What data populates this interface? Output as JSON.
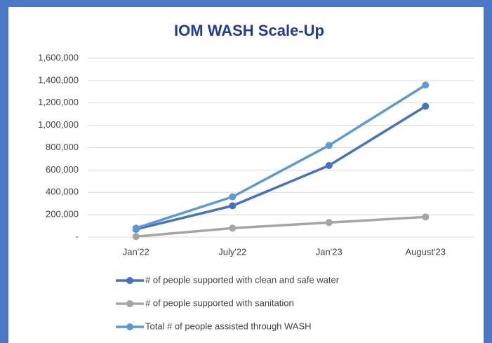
{
  "chart_data": {
    "type": "line",
    "title": "IOM WASH Scale-Up",
    "categories": [
      "Jan'22",
      "July'22",
      "Jan'23",
      "August'23"
    ],
    "series": [
      {
        "name": "# of people supported with clean and safe water",
        "color": "#4472c4",
        "values": [
          70000,
          280000,
          640000,
          1170000
        ]
      },
      {
        "name": "# of people supported with sanitation",
        "color": "#a5a5a5",
        "values": [
          5000,
          80000,
          130000,
          180000
        ]
      },
      {
        "name": "Total # of people assisted through WASH",
        "color": "#5b9bd5",
        "values": [
          80000,
          360000,
          820000,
          1360000
        ]
      }
    ],
    "ylim": [
      0,
      1600000
    ],
    "yticks": [
      {
        "value": 0,
        "label": "-"
      },
      {
        "value": 200000,
        "label": "200,000"
      },
      {
        "value": 400000,
        "label": "400,000"
      },
      {
        "value": 600000,
        "label": "600,000"
      },
      {
        "value": 800000,
        "label": "800,000"
      },
      {
        "value": 1000000,
        "label": "1,000,000"
      },
      {
        "value": 1200000,
        "label": "1,200,000"
      },
      {
        "value": 1400000,
        "label": "1,400,000"
      },
      {
        "value": 1600000,
        "label": "1,600,000"
      }
    ],
    "grid": true,
    "legend": "bottom"
  }
}
